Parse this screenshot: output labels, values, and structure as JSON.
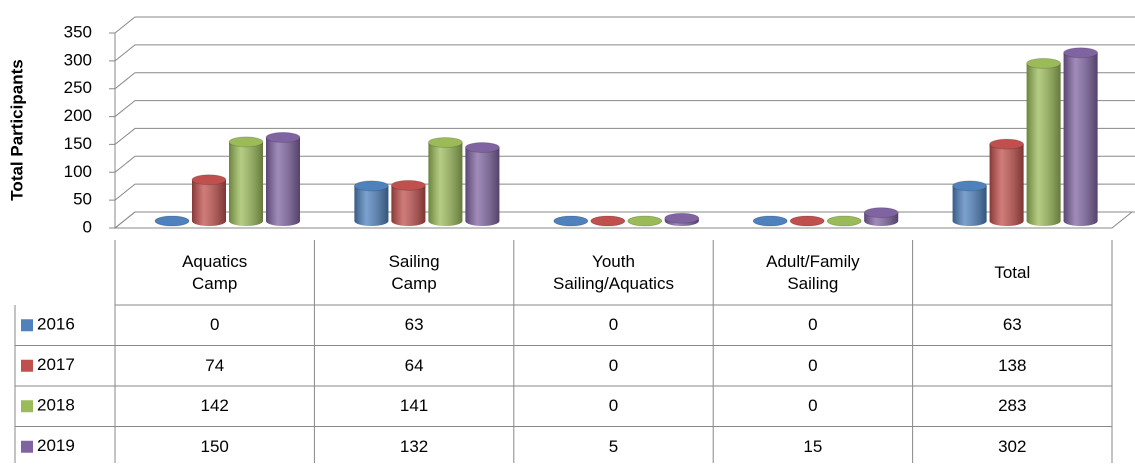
{
  "chart_data": {
    "type": "bar3d",
    "y_label": "Total Participants",
    "categories": [
      "Aquatics Camp",
      "Sailing Camp",
      "Youth Sailing/Aquatics",
      "Adult/Family Sailing",
      "Total"
    ],
    "series": [
      {
        "name": "2016",
        "color": "#4f81bd",
        "values": [
          0,
          63,
          0,
          0,
          63
        ]
      },
      {
        "name": "2017",
        "color": "#c0504d",
        "values": [
          74,
          64,
          0,
          0,
          138
        ]
      },
      {
        "name": "2018",
        "color": "#9bbb59",
        "values": [
          142,
          141,
          0,
          0,
          283
        ]
      },
      {
        "name": "2019",
        "color": "#8064a2",
        "values": [
          150,
          132,
          5,
          15,
          302
        ]
      }
    ],
    "ylim": [
      0,
      350
    ],
    "yticks": [
      0,
      50,
      100,
      150,
      200,
      250,
      300,
      350
    ],
    "grid": true,
    "data_table": true
  }
}
